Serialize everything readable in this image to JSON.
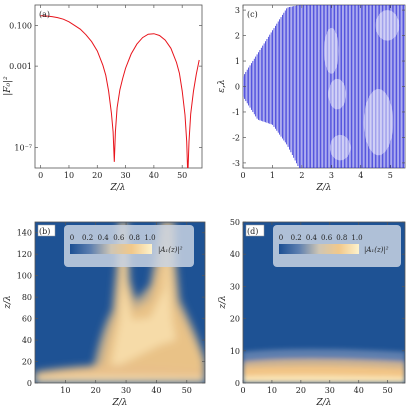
{
  "chart_data": [
    {
      "panel": "(a)",
      "type": "line",
      "xlabel": "Z/λ",
      "ylabel": "|F₀|²",
      "yscale": "log",
      "xlim": [
        -2,
        57
      ],
      "ylim": [
        1e-08,
        1
      ],
      "xticks": [
        0,
        10,
        20,
        30,
        40,
        50
      ],
      "yticks": [
        {
          "value": 0.1,
          "label": "0.100"
        },
        {
          "value": 0.001,
          "label": "0.001"
        },
        {
          "value": 1e-07,
          "label": "10⁻⁷"
        }
      ],
      "series": [
        {
          "color": "#e8141c",
          "x": [
            0,
            2,
            4,
            6,
            8,
            10,
            12,
            14,
            16,
            18,
            20,
            22,
            23,
            24,
            25,
            25.6,
            26,
            26.4,
            27,
            28,
            29,
            30,
            32,
            34,
            36,
            38,
            40,
            42,
            44,
            46,
            48,
            49,
            50,
            51,
            51.6,
            52,
            52.4,
            53,
            54,
            55,
            56
          ],
          "y": [
            0.3,
            0.29,
            0.27,
            0.24,
            0.2,
            0.15,
            0.1,
            0.065,
            0.035,
            0.016,
            0.0055,
            0.0011,
            0.00035,
            6e-05,
            5e-06,
            6e-07,
            2e-08,
            6e-07,
            9e-06,
            7e-05,
            0.00025,
            0.0008,
            0.004,
            0.012,
            0.025,
            0.037,
            0.039,
            0.032,
            0.019,
            0.0075,
            0.0015,
            0.00045,
            6e-05,
            4e-06,
            2e-07,
            4e-09,
            2e-07,
            4.5e-06,
            6e-05,
            0.0004,
            0.002
          ]
        }
      ]
    },
    {
      "panel": "(c)",
      "type": "scatter",
      "xlabel": "Z/λ",
      "ylabel": "ε,λ",
      "xlim": [
        0,
        5.5
      ],
      "ylim": [
        -3.2,
        3.2
      ],
      "xticks": [
        0,
        1,
        2,
        3,
        4,
        5
      ],
      "yticks": [
        -3,
        -2,
        -1,
        0,
        1,
        2,
        3
      ],
      "color": "#2b2bd6",
      "band_edge": {
        "z": [
          0.0,
          0.5,
          1.0,
          1.5,
          1.9
        ],
        "eps_upper": [
          0.4,
          1.3,
          2.2,
          3.1,
          3.2
        ],
        "eps_lower": [
          -0.4,
          -1.3,
          -1.5,
          -2.3,
          -3.2
        ]
      }
    },
    {
      "panel": "(b)",
      "type": "heatmap",
      "xlabel": "Z/λ",
      "ylabel": "z/λ",
      "xlim": [
        0,
        56
      ],
      "ylim": [
        0,
        150
      ],
      "xticks": [
        10,
        20,
        30,
        40,
        50
      ],
      "yticks": [
        0,
        20,
        40,
        60,
        80,
        100,
        120,
        140
      ],
      "colorbar": {
        "label": "|A₁(z)|²",
        "ticks": [
          "0",
          "0.2",
          "0.4",
          "0.6",
          "0.8",
          "1.0"
        ]
      }
    },
    {
      "panel": "(d)",
      "type": "heatmap",
      "xlabel": "Z/λ",
      "ylabel": "z/λ",
      "xlim": [
        0,
        56
      ],
      "ylim": [
        0,
        50
      ],
      "xticks": [
        0,
        10,
        20,
        30,
        40,
        50
      ],
      "yticks": [
        0,
        10,
        20,
        30,
        40,
        50
      ],
      "colorbar": {
        "label": "|A₁(z)|²",
        "ticks": [
          "0",
          "0.2",
          "0.4",
          "0.6",
          "0.8",
          "1.0"
        ]
      }
    }
  ]
}
